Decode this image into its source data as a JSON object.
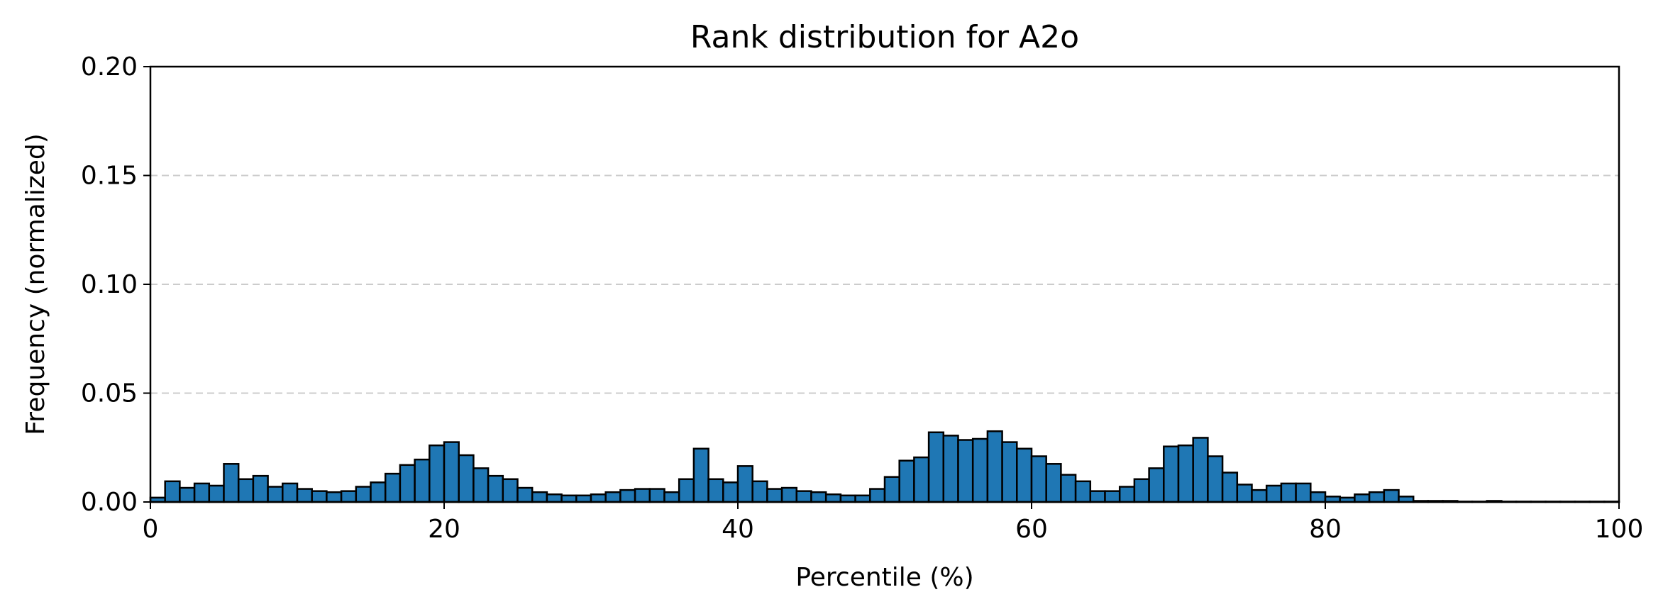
{
  "chart_data": {
    "type": "bar",
    "title": "Rank distribution for A2o",
    "xlabel": "Percentile (%)",
    "ylabel": "Frequency (normalized)",
    "xlim": [
      0,
      100
    ],
    "ylim": [
      0,
      0.2
    ],
    "xticks": [
      "0",
      "20",
      "40",
      "60",
      "80",
      "100"
    ],
    "yticks": [
      "0.00",
      "0.05",
      "0.10",
      "0.15",
      "0.20"
    ],
    "grid": "horizontal dashed",
    "bin_width": 1,
    "bin_starts": [
      0,
      1,
      2,
      3,
      4,
      5,
      6,
      7,
      8,
      9,
      10,
      11,
      12,
      13,
      14,
      15,
      16,
      17,
      18,
      19,
      20,
      21,
      22,
      23,
      24,
      25,
      26,
      27,
      28,
      29,
      30,
      31,
      32,
      33,
      34,
      35,
      36,
      37,
      38,
      39,
      40,
      41,
      42,
      43,
      44,
      45,
      46,
      47,
      48,
      49,
      50,
      51,
      52,
      53,
      54,
      55,
      56,
      57,
      58,
      59,
      60,
      61,
      62,
      63,
      64,
      65,
      66,
      67,
      68,
      69,
      70,
      71,
      72,
      73,
      74,
      75,
      76,
      77,
      78,
      79,
      80,
      81,
      82,
      83,
      84,
      85,
      86,
      87,
      88,
      89,
      90,
      91,
      92,
      93,
      94,
      95,
      96,
      97,
      98,
      99
    ],
    "values": [
      0.002,
      0.0095,
      0.0065,
      0.0085,
      0.0075,
      0.0175,
      0.0105,
      0.012,
      0.007,
      0.0085,
      0.006,
      0.005,
      0.0045,
      0.005,
      0.007,
      0.009,
      0.013,
      0.017,
      0.0195,
      0.026,
      0.0275,
      0.0215,
      0.0155,
      0.012,
      0.0105,
      0.0065,
      0.0045,
      0.0035,
      0.003,
      0.003,
      0.0035,
      0.0045,
      0.0055,
      0.006,
      0.006,
      0.0045,
      0.0105,
      0.0245,
      0.0105,
      0.009,
      0.0165,
      0.0095,
      0.006,
      0.0065,
      0.005,
      0.0045,
      0.0035,
      0.003,
      0.003,
      0.006,
      0.0115,
      0.019,
      0.0205,
      0.032,
      0.0305,
      0.0285,
      0.029,
      0.0325,
      0.0275,
      0.0245,
      0.021,
      0.0175,
      0.0125,
      0.0095,
      0.005,
      0.005,
      0.007,
      0.0105,
      0.0155,
      0.0255,
      0.026,
      0.0295,
      0.021,
      0.0135,
      0.008,
      0.0055,
      0.0075,
      0.0085,
      0.0085,
      0.0045,
      0.0025,
      0.002,
      0.0035,
      0.0045,
      0.0055,
      0.0025,
      0.0005,
      0.0005,
      0.0005,
      0.0002,
      0.0002,
      0.0005,
      0.0002,
      0.0002,
      0.0002,
      0.0002,
      0.0002,
      0.0002,
      0.0002,
      0.0002
    ],
    "bar_color": "#1f77b4",
    "edge_color": "#000000"
  }
}
